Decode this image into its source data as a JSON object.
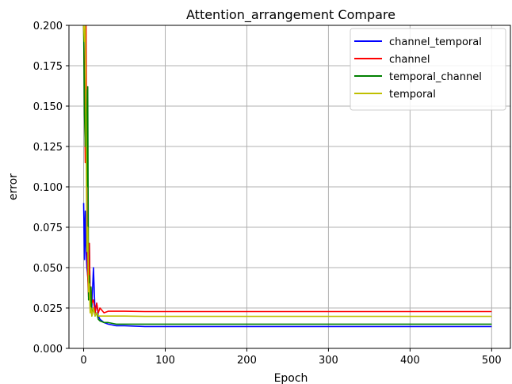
{
  "chart_data": {
    "type": "line",
    "title": "Attention_arrangement Compare",
    "xlabel": "Epoch",
    "ylabel": "error",
    "xlim": [
      -18,
      523
    ],
    "ylim": [
      0,
      0.2
    ],
    "xticks": [
      0,
      100,
      200,
      300,
      400,
      500
    ],
    "xtick_labels": [
      "0",
      "100",
      "200",
      "300",
      "400",
      "500"
    ],
    "yticks": [
      0,
      0.025,
      0.05,
      0.075,
      0.1,
      0.125,
      0.15,
      0.175,
      0.2
    ],
    "ytick_labels": [
      "0.000",
      "0.025",
      "0.050",
      "0.075",
      "0.100",
      "0.125",
      "0.150",
      "0.175",
      "0.200"
    ],
    "grid": true,
    "legend_position": "top-right",
    "series": [
      {
        "name": "channel_temporal",
        "color": "#0000ff",
        "x": [
          0,
          1,
          2,
          3,
          4,
          5,
          6,
          7,
          8,
          9,
          10,
          12,
          14,
          16,
          18,
          20,
          25,
          30,
          40,
          50,
          75,
          100,
          150,
          200,
          250,
          300,
          350,
          400,
          450,
          500
        ],
        "y": [
          0.09,
          0.055,
          0.085,
          0.06,
          0.05,
          0.045,
          0.038,
          0.065,
          0.03,
          0.035,
          0.025,
          0.05,
          0.022,
          0.028,
          0.02,
          0.018,
          0.016,
          0.015,
          0.014,
          0.014,
          0.0135,
          0.0135,
          0.0135,
          0.0135,
          0.0135,
          0.0135,
          0.0135,
          0.0135,
          0.0135,
          0.0135
        ]
      },
      {
        "name": "channel",
        "color": "#ff0000",
        "x": [
          0,
          1,
          2,
          3,
          4,
          5,
          6,
          7,
          8,
          9,
          10,
          12,
          14,
          16,
          18,
          20,
          25,
          30,
          40,
          50,
          75,
          100,
          150,
          200,
          250,
          300,
          350,
          400,
          450,
          500
        ],
        "y": [
          0.2,
          0.165,
          0.115,
          0.2,
          0.075,
          0.045,
          0.032,
          0.065,
          0.03,
          0.038,
          0.028,
          0.03,
          0.022,
          0.028,
          0.022,
          0.025,
          0.022,
          0.023,
          0.023,
          0.023,
          0.0228,
          0.0228,
          0.0228,
          0.0228,
          0.0228,
          0.0228,
          0.0228,
          0.0228,
          0.0228,
          0.0228
        ]
      },
      {
        "name": "temporal_channel",
        "color": "#008000",
        "x": [
          0,
          1,
          2,
          3,
          4,
          5,
          6,
          7,
          8,
          9,
          10,
          12,
          14,
          16,
          18,
          20,
          25,
          30,
          40,
          50,
          75,
          100,
          150,
          200,
          250,
          300,
          350,
          400,
          450,
          500
        ],
        "y": [
          0.2,
          0.145,
          0.125,
          0.16,
          0.1,
          0.162,
          0.03,
          0.045,
          0.025,
          0.038,
          0.02,
          0.025,
          0.02,
          0.022,
          0.018,
          0.017,
          0.016,
          0.016,
          0.015,
          0.015,
          0.015,
          0.015,
          0.015,
          0.015,
          0.015,
          0.015,
          0.015,
          0.015,
          0.015,
          0.015
        ]
      },
      {
        "name": "temporal",
        "color": "#bfbf00",
        "x": [
          0,
          1,
          2,
          3,
          4,
          5,
          6,
          7,
          8,
          9,
          10,
          12,
          14,
          16,
          18,
          20,
          25,
          30,
          40,
          50,
          75,
          100,
          150,
          200,
          250,
          300,
          350,
          400,
          450,
          500
        ],
        "y": [
          0.2,
          0.19,
          0.2,
          0.13,
          0.06,
          0.075,
          0.035,
          0.04,
          0.022,
          0.025,
          0.02,
          0.025,
          0.02,
          0.022,
          0.02,
          0.02,
          0.02,
          0.02,
          0.02,
          0.02,
          0.0198,
          0.0198,
          0.0198,
          0.0198,
          0.0198,
          0.0198,
          0.0198,
          0.0198,
          0.0198,
          0.0198
        ]
      }
    ]
  }
}
